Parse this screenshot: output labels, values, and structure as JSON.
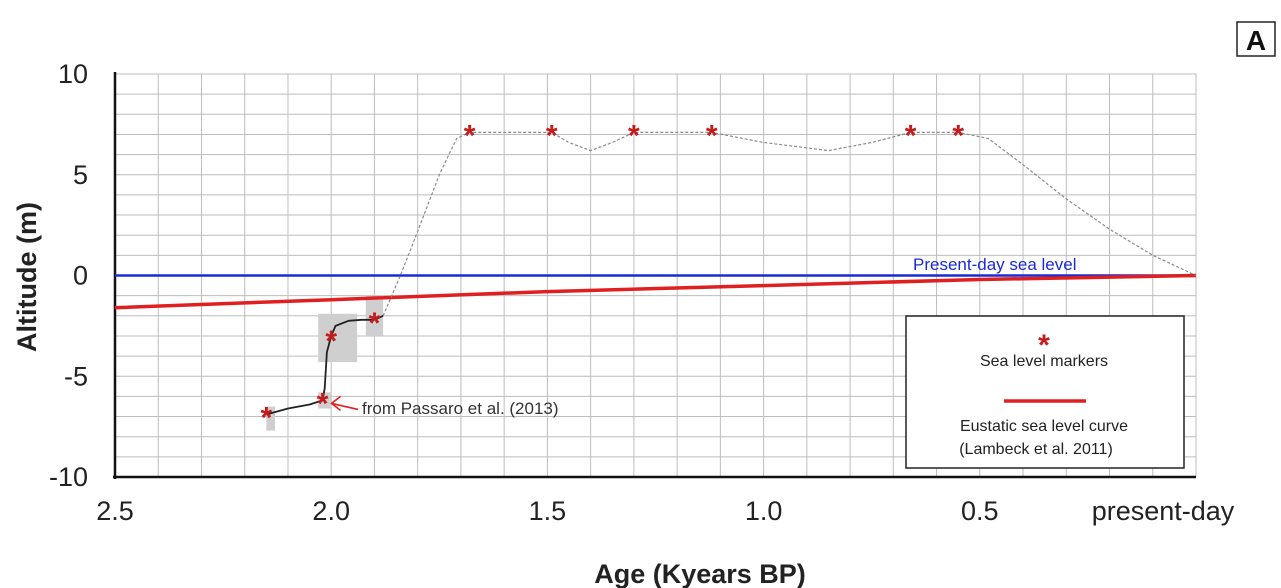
{
  "chart_data": {
    "type": "scatter",
    "panel_label": "A",
    "xlabel": "Age (Kyears BP)",
    "ylabel": "Altitude (m)",
    "xlim": [
      2.5,
      0
    ],
    "ylim": [
      -10,
      10
    ],
    "x_ticks": [
      {
        "value": 2.5,
        "label": "2.5"
      },
      {
        "value": 2.0,
        "label": "2.0"
      },
      {
        "value": 1.5,
        "label": "1.5"
      },
      {
        "value": 1.0,
        "label": "1.0"
      },
      {
        "value": 0.5,
        "label": "0.5"
      },
      {
        "value": 0.0,
        "label": "present-day"
      }
    ],
    "y_ticks": [
      {
        "value": 10,
        "label": "10"
      },
      {
        "value": 5,
        "label": "5"
      },
      {
        "value": 0,
        "label": "0"
      },
      {
        "value": -5,
        "label": "-5"
      },
      {
        "value": -10,
        "label": "-10"
      }
    ],
    "grid": true,
    "grid_step": {
      "x": 0.1,
      "y": 1
    },
    "colors": {
      "marker": "#c41b1b",
      "present_day": "#1a2bd6",
      "eustatic": "#e02020",
      "measured_curve": "#222222",
      "reconstructed_curve": "#8a8a8a",
      "uncertainty": "#cfcfcf",
      "grid": "#bdbdbd"
    },
    "present_day_sea_level": {
      "label": "Present-day sea level",
      "y": 0
    },
    "eustatic_curve": {
      "points": [
        [
          2.5,
          -1.6
        ],
        [
          2.0,
          -1.2
        ],
        [
          1.5,
          -0.8
        ],
        [
          1.0,
          -0.5
        ],
        [
          0.5,
          -0.2
        ],
        [
          0.0,
          0.0
        ]
      ]
    },
    "sea_level_markers": [
      {
        "x": 2.15,
        "y": -6.9
      },
      {
        "x": 2.02,
        "y": -6.2
      },
      {
        "x": 2.0,
        "y": -3.1
      },
      {
        "x": 1.9,
        "y": -2.2
      },
      {
        "x": 1.68,
        "y": 7.1
      },
      {
        "x": 1.49,
        "y": 7.1
      },
      {
        "x": 1.3,
        "y": 7.1
      },
      {
        "x": 1.12,
        "y": 7.1
      },
      {
        "x": 0.66,
        "y": 7.1
      },
      {
        "x": 0.55,
        "y": 7.1
      }
    ],
    "uncertainty_boxes": [
      {
        "x": [
          2.15,
          2.13
        ],
        "y": [
          -7.7,
          -6.5
        ]
      },
      {
        "x": [
          2.03,
          2.0
        ],
        "y": [
          -6.6,
          -5.8
        ]
      },
      {
        "x": [
          2.03,
          1.94
        ],
        "y": [
          -4.3,
          -1.9
        ]
      },
      {
        "x": [
          1.92,
          1.88
        ],
        "y": [
          -3.0,
          -1.0
        ]
      }
    ],
    "measured_curve": [
      [
        2.15,
        -6.9
      ],
      [
        2.1,
        -6.6
      ],
      [
        2.05,
        -6.4
      ],
      [
        2.02,
        -6.2
      ],
      [
        2.015,
        -5.6
      ],
      [
        2.01,
        -3.8
      ],
      [
        2.0,
        -3.0
      ],
      [
        1.99,
        -2.5
      ],
      [
        1.96,
        -2.25
      ],
      [
        1.93,
        -2.2
      ],
      [
        1.9,
        -2.2
      ],
      [
        1.88,
        -2.0
      ]
    ],
    "reconstructed_curve": [
      [
        1.88,
        -2.0
      ],
      [
        1.84,
        0.0
      ],
      [
        1.8,
        2.2
      ],
      [
        1.75,
        5.0
      ],
      [
        1.71,
        6.8
      ],
      [
        1.68,
        7.1
      ],
      [
        1.6,
        7.1
      ],
      [
        1.49,
        7.1
      ],
      [
        1.45,
        6.6
      ],
      [
        1.4,
        6.2
      ],
      [
        1.35,
        6.6
      ],
      [
        1.3,
        7.1
      ],
      [
        1.2,
        7.1
      ],
      [
        1.12,
        7.1
      ],
      [
        1.0,
        6.6
      ],
      [
        0.85,
        6.2
      ],
      [
        0.75,
        6.6
      ],
      [
        0.66,
        7.1
      ],
      [
        0.55,
        7.1
      ],
      [
        0.48,
        6.8
      ],
      [
        0.4,
        5.5
      ],
      [
        0.3,
        3.8
      ],
      [
        0.2,
        2.3
      ],
      [
        0.1,
        1.0
      ],
      [
        0.0,
        0.0
      ]
    ],
    "annotation": {
      "text": "from Passaro et al. (2013)",
      "target": [
        2.02,
        -6.2
      ]
    },
    "legend": {
      "position": "bottom-right",
      "entries": [
        {
          "label": "Sea level markers"
        },
        {
          "label": "Eustatic sea level curve"
        },
        {
          "label": "(Lambeck et al. 2011)"
        }
      ]
    }
  }
}
